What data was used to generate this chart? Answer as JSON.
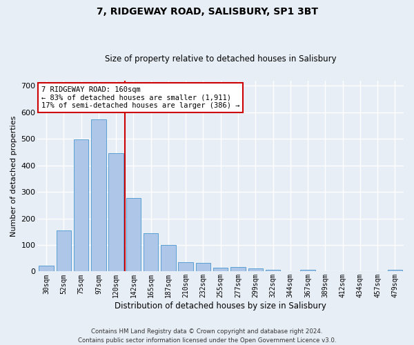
{
  "title": "7, RIDGEWAY ROAD, SALISBURY, SP1 3BT",
  "subtitle": "Size of property relative to detached houses in Salisbury",
  "xlabel": "Distribution of detached houses by size in Salisbury",
  "ylabel": "Number of detached properties",
  "categories": [
    "30sqm",
    "52sqm",
    "75sqm",
    "97sqm",
    "120sqm",
    "142sqm",
    "165sqm",
    "187sqm",
    "210sqm",
    "232sqm",
    "255sqm",
    "277sqm",
    "299sqm",
    "322sqm",
    "344sqm",
    "367sqm",
    "389sqm",
    "412sqm",
    "434sqm",
    "457sqm",
    "479sqm"
  ],
  "bar_values": [
    22,
    155,
    497,
    573,
    445,
    277,
    145,
    99,
    35,
    32,
    15,
    16,
    12,
    6,
    0,
    7,
    0,
    0,
    0,
    0,
    6
  ],
  "bar_color": "#aec6e8",
  "bar_edge_color": "#5a9fd4",
  "bg_color": "#e8eef6",
  "grid_color": "#ffffff",
  "vline_x_index": 5,
  "vline_color": "#cc0000",
  "annotation_text_line1": "7 RIDGEWAY ROAD: 160sqm",
  "annotation_text_line2": "← 83% of detached houses are smaller (1,911)",
  "annotation_text_line3": "17% of semi-detached houses are larger (386) →",
  "annotation_box_color": "#ffffff",
  "annotation_box_edge": "#cc0000",
  "footer_text": "Contains HM Land Registry data © Crown copyright and database right 2024.\nContains public sector information licensed under the Open Government Licence v3.0.",
  "ylim": [
    0,
    720
  ],
  "yticks": [
    0,
    100,
    200,
    300,
    400,
    500,
    600,
    700
  ]
}
